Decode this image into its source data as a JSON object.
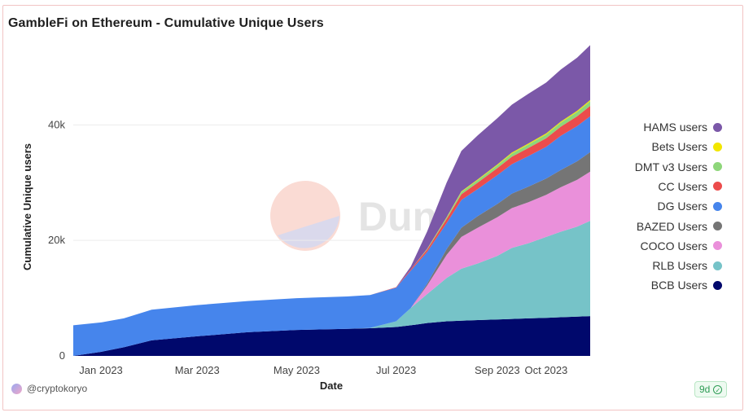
{
  "title": "GambleFi on Ethereum - Cumulative Unique Users",
  "footer": {
    "author": "@cryptokoryo",
    "refresh_badge": "9d"
  },
  "watermark": "Dune",
  "colors": {
    "HAMS users": "#7b58a8",
    "Bets Users": "#f2e600",
    "DMT v3 Users": "#8ed67a",
    "CC Users": "#ec4c4c",
    "DG Users": "#4685ec",
    "BAZED Users": "#757575",
    "COCO Users": "#ea90da",
    "RLB Users": "#76c3c8",
    "BCB Users": "#00086c"
  },
  "chart_data": {
    "type": "area",
    "stacked": true,
    "title": "GambleFi on Ethereum - Cumulative Unique Users",
    "xlabel": "Date",
    "ylabel": "Cumulative Unique users",
    "xlim": [
      "2022-12-15",
      "2023-10-28"
    ],
    "ylim": [
      0,
      55000
    ],
    "y_ticks": [
      {
        "value": 0,
        "label": "0"
      },
      {
        "value": 20000,
        "label": "20k"
      },
      {
        "value": 40000,
        "label": "40k"
      }
    ],
    "x_ticks": [
      {
        "date": "2023-01-01",
        "label": "Jan 2023"
      },
      {
        "date": "2023-03-01",
        "label": "Mar 2023"
      },
      {
        "date": "2023-05-01",
        "label": "May 2023"
      },
      {
        "date": "2023-07-01",
        "label": "Jul 2023"
      },
      {
        "date": "2023-09-01",
        "label": "Sep 2023"
      },
      {
        "date": "2023-10-01",
        "label": "Oct 2023"
      }
    ],
    "legend_position": "right",
    "legend": [
      "HAMS users",
      "Bets Users",
      "DMT v3 Users",
      "CC Users",
      "DG Users",
      "BAZED Users",
      "COCO Users",
      "RLB Users",
      "BCB Users"
    ],
    "x": [
      "2022-12-15",
      "2023-01-01",
      "2023-01-15",
      "2023-02-01",
      "2023-03-01",
      "2023-04-01",
      "2023-05-01",
      "2023-06-01",
      "2023-06-15",
      "2023-07-01",
      "2023-07-10",
      "2023-07-20",
      "2023-08-01",
      "2023-08-10",
      "2023-08-20",
      "2023-09-01",
      "2023-09-10",
      "2023-09-20",
      "2023-10-01",
      "2023-10-10",
      "2023-10-20",
      "2023-10-28"
    ],
    "series": [
      {
        "name": "BCB Users",
        "values": [
          0,
          700,
          1500,
          2700,
          3400,
          4100,
          4500,
          4700,
          4800,
          5000,
          5300,
          5700,
          6000,
          6100,
          6200,
          6300,
          6400,
          6500,
          6600,
          6700,
          6800,
          6900
        ]
      },
      {
        "name": "RLB Users",
        "values": [
          0,
          0,
          0,
          0,
          0,
          0,
          0,
          0,
          50,
          1000,
          3000,
          5000,
          7500,
          9000,
          9800,
          11000,
          12300,
          13000,
          14000,
          14800,
          15600,
          16500
        ]
      },
      {
        "name": "COCO Users",
        "values": [
          0,
          0,
          0,
          0,
          0,
          0,
          0,
          0,
          0,
          0,
          0,
          1500,
          4000,
          5500,
          6200,
          6700,
          6900,
          7100,
          7300,
          7700,
          8100,
          8500
        ]
      },
      {
        "name": "BAZED Users",
        "values": [
          0,
          0,
          0,
          0,
          0,
          0,
          0,
          0,
          0,
          0,
          0,
          300,
          1000,
          1600,
          2000,
          2300,
          2500,
          2700,
          2800,
          3000,
          3200,
          3400
        ]
      },
      {
        "name": "DG Users",
        "values": [
          5300,
          5100,
          5000,
          5300,
          5400,
          5400,
          5500,
          5600,
          5700,
          5800,
          6500,
          5500,
          4500,
          4800,
          4700,
          5000,
          5100,
          5300,
          5500,
          5900,
          6100,
          6200
        ]
      },
      {
        "name": "CC Users",
        "values": [
          0,
          0,
          0,
          0,
          0,
          0,
          0,
          0,
          0,
          100,
          200,
          400,
          700,
          1000,
          1100,
          1200,
          1300,
          1400,
          1500,
          1600,
          1700,
          1800
        ]
      },
      {
        "name": "DMT v3 Users",
        "values": [
          0,
          0,
          0,
          0,
          0,
          0,
          0,
          0,
          0,
          0,
          0,
          100,
          250,
          400,
          450,
          500,
          550,
          600,
          650,
          700,
          750,
          800
        ]
      },
      {
        "name": "Bets Users",
        "values": [
          0,
          0,
          0,
          0,
          0,
          0,
          0,
          0,
          0,
          0,
          0,
          50,
          80,
          100,
          120,
          140,
          160,
          170,
          180,
          190,
          200,
          210
        ]
      },
      {
        "name": "HAMS users",
        "values": [
          0,
          0,
          0,
          0,
          0,
          0,
          0,
          0,
          0,
          0,
          500,
          3000,
          6000,
          7000,
          7600,
          8000,
          8300,
          8600,
          8800,
          9000,
          9200,
          9500
        ]
      }
    ]
  }
}
